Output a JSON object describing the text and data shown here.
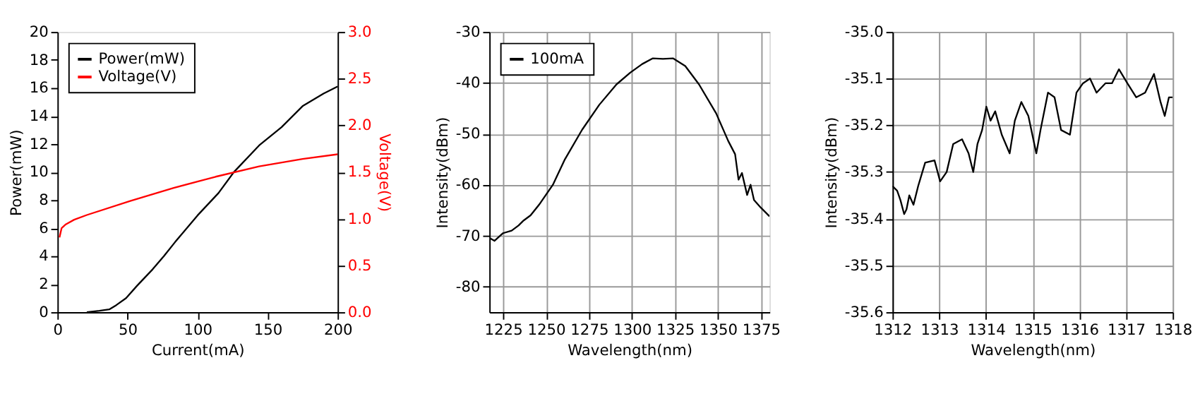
{
  "chart_data": [
    {
      "type": "line",
      "xlabel": "Current(mA)",
      "ylabel": "Power(mW)",
      "y2label": "Voltage(V)",
      "legend": "top left",
      "grid": false,
      "xlim": [
        0,
        200
      ],
      "xticks": [
        0,
        50,
        100,
        150,
        200
      ],
      "ylim": [
        0,
        20
      ],
      "yticks": [
        0,
        2,
        4,
        6,
        8,
        10,
        12,
        14,
        16,
        18,
        20
      ],
      "y2lim": [
        0,
        3
      ],
      "y2ticks": [
        {
          "value": 0,
          "label": "0.0"
        },
        {
          "value": 0.5,
          "label": "0.5"
        },
        {
          "value": 1,
          "label": "1.0"
        },
        {
          "value": 1.5,
          "label": "1.5"
        },
        {
          "value": 2,
          "label": "2.0"
        },
        {
          "value": 2.5,
          "label": "2.5"
        },
        {
          "value": 3,
          "label": "3.0"
        }
      ],
      "series": [
        {
          "name": "Power(mW)",
          "color": "#000000",
          "x": [
            21,
            30,
            37,
            42,
            49,
            57,
            68,
            76,
            84,
            100,
            115,
            126,
            144,
            160,
            175,
            190,
            200
          ],
          "values": [
            0,
            0.1,
            0.2,
            0.5,
            1.0,
            1.9,
            3.06,
            4.0,
            5.0,
            6.9,
            8.5,
            10.0,
            11.9,
            13.2,
            14.7,
            15.6,
            16.1
          ]
        },
        {
          "name": "Voltage(V)",
          "color": "#ff0000",
          "axis": "y2",
          "x": [
            1.5,
            3,
            6,
            12,
            21,
            52,
            83,
            113,
            144,
            175,
            200
          ],
          "values": [
            0.8,
            0.9,
            0.94,
            0.99,
            1.04,
            1.19,
            1.33,
            1.45,
            1.56,
            1.64,
            1.69
          ]
        }
      ]
    },
    {
      "type": "line",
      "xlabel": "Wavelength(nm)",
      "ylabel": "Intensity(dBm)",
      "legend": "top left",
      "grid": true,
      "xlim": [
        1217,
        1380
      ],
      "xticks": [
        1225,
        1250,
        1275,
        1300,
        1325,
        1350,
        1375
      ],
      "ylim": [
        -85,
        -30
      ],
      "yticks": [
        -80,
        -70,
        -60,
        -50,
        -40,
        -30
      ],
      "series": [
        {
          "name": "100mA",
          "color": "#000000",
          "x": [
            1217.5,
            1220,
            1225,
            1230,
            1234,
            1237,
            1241,
            1246,
            1254,
            1261,
            1271,
            1281,
            1291,
            1299,
            1306,
            1312,
            1318,
            1324,
            1331,
            1339,
            1349,
            1356,
            1360,
            1362,
            1364,
            1367,
            1369,
            1371,
            1375,
            1380
          ],
          "values": [
            -70.5,
            -71,
            -69.5,
            -69,
            -68,
            -67,
            -66,
            -63.9,
            -60,
            -55,
            -49.2,
            -44.3,
            -40.3,
            -38,
            -36.3,
            -35.2,
            -35.3,
            -35.2,
            -36.7,
            -40.3,
            -46,
            -51.4,
            -54,
            -59,
            -57.7,
            -62,
            -60,
            -63,
            -64.5,
            -66.2
          ]
        }
      ]
    },
    {
      "type": "line",
      "xlabel": "Wavelength(nm)",
      "ylabel": "Intensity(dBm)",
      "grid": true,
      "xlim": [
        1312,
        1318
      ],
      "xticks": [
        1312,
        1313,
        1314,
        1315,
        1316,
        1317,
        1318
      ],
      "ylim": [
        -35.6,
        -35.0
      ],
      "yticks": [
        {
          "value": -35.6,
          "label": "-35.6"
        },
        {
          "value": -35.5,
          "label": "-35.5"
        },
        {
          "value": -35.4,
          "label": "-35.4"
        },
        {
          "value": -35.3,
          "label": "-35.3"
        },
        {
          "value": -35.2,
          "label": "-35.2"
        },
        {
          "value": -35.1,
          "label": "-35.1"
        },
        {
          "value": -35.0,
          "label": "-35.0"
        }
      ],
      "series": [
        {
          "color": "#000000",
          "x": [
            1312,
            1312.1,
            1312.17,
            1312.25,
            1312.3,
            1312.36,
            1312.45,
            1312.55,
            1312.7,
            1312.9,
            1313.02,
            1313.16,
            1313.3,
            1313.49,
            1313.63,
            1313.73,
            1313.82,
            1313.92,
            1314.01,
            1314.1,
            1314.2,
            1314.34,
            1314.51,
            1314.62,
            1314.76,
            1314.91,
            1315.08,
            1315.17,
            1315.33,
            1315.47,
            1315.61,
            1315.8,
            1315.94,
            1316.08,
            1316.23,
            1316.37,
            1316.56,
            1316.7,
            1316.85,
            1317.03,
            1317.22,
            1317.41,
            1317.6,
            1317.74,
            1317.83,
            1317.92,
            1318
          ],
          "values": [
            -35.33,
            -35.34,
            -35.36,
            -35.39,
            -35.38,
            -35.35,
            -35.37,
            -35.33,
            -35.28,
            -35.275,
            -35.32,
            -35.3,
            -35.24,
            -35.23,
            -35.26,
            -35.3,
            -35.24,
            -35.21,
            -35.16,
            -35.19,
            -35.17,
            -35.22,
            -35.26,
            -35.19,
            -35.15,
            -35.18,
            -35.26,
            -35.21,
            -35.13,
            -35.14,
            -35.21,
            -35.22,
            -35.13,
            -35.11,
            -35.1,
            -35.13,
            -35.11,
            -35.11,
            -35.08,
            -35.11,
            -35.14,
            -35.13,
            -35.09,
            -35.15,
            -35.18,
            -35.14,
            -35.14
          ]
        }
      ]
    }
  ]
}
